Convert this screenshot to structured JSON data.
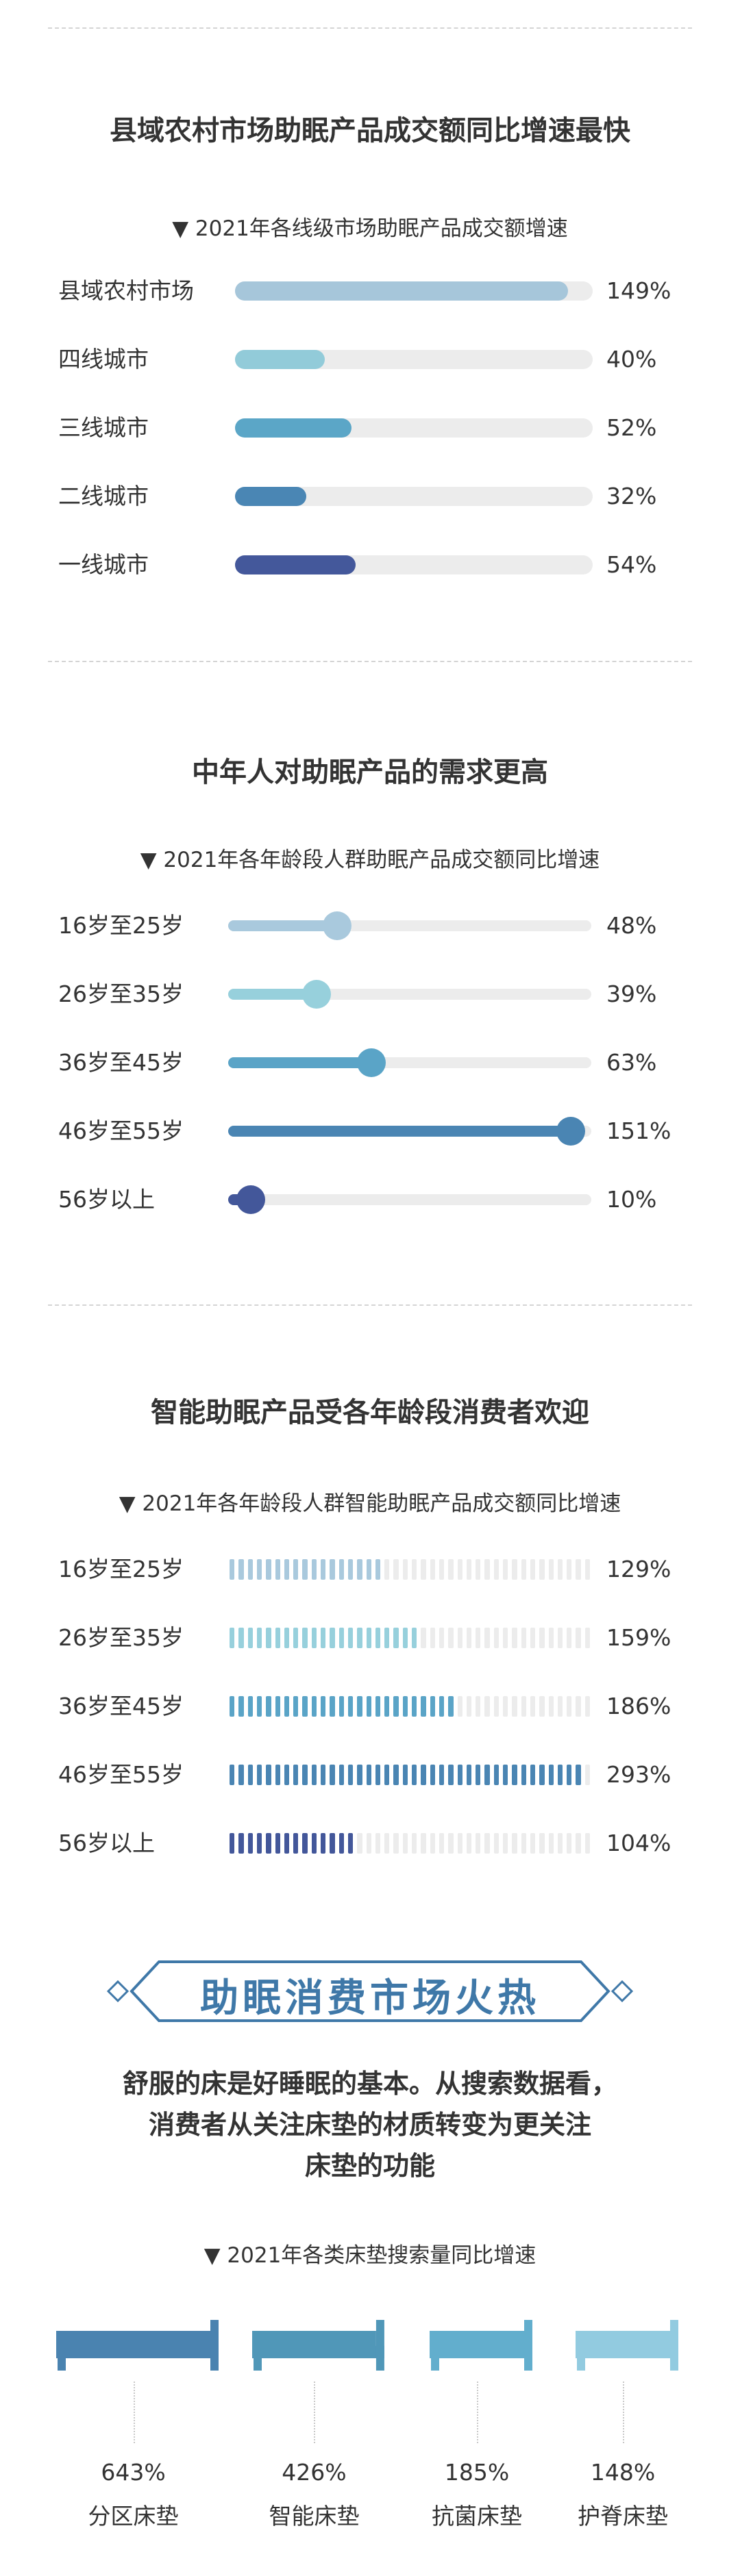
{
  "section1": {
    "title": "县域农村市场助眠产品成交额同比增速最快",
    "chart_data": {
      "type": "bar",
      "title": "▼ 2021年各线级市场助眠产品成交额增速",
      "categories": [
        "县域农村市场",
        "四线城市",
        "三线城市",
        "二线城市",
        "一线城市"
      ],
      "values": [
        149,
        40,
        52,
        32,
        54
      ],
      "value_labels": [
        "149%",
        "40%",
        "52%",
        "32%",
        "54%"
      ],
      "xlim": [
        0,
        160
      ],
      "colors": [
        "#a6c6da",
        "#92cbd9",
        "#5ba6c7",
        "#4a86b4",
        "#44589b"
      ],
      "track_color": "#ececec"
    }
  },
  "section2": {
    "title": "中年人对助眠产品的需求更高",
    "chart_data": {
      "type": "bar",
      "title": "▼ 2021年各年龄段人群助眠产品成交额同比增速",
      "categories": [
        "16岁至25岁",
        "26岁至35岁",
        "36岁至45岁",
        "46岁至55岁",
        "56岁以上"
      ],
      "values": [
        48,
        39,
        63,
        151,
        10
      ],
      "value_labels": [
        "48%",
        "39%",
        "63%",
        "151%",
        "10%"
      ],
      "xlim": [
        0,
        160
      ],
      "colors": [
        "#a9c9dd",
        "#97d0dc",
        "#5aa4c7",
        "#4a85b3",
        "#43579a"
      ],
      "track_color": "#ececec"
    }
  },
  "section3": {
    "title": "智能助眠产品受各年龄段消费者欢迎",
    "chart_data": {
      "type": "bar",
      "title": "▼ 2021年各年龄段人群智能助眠产品成交额同比增速",
      "categories": [
        "16岁至25岁",
        "26岁至35岁",
        "36岁至45岁",
        "46岁至55岁",
        "56岁以上"
      ],
      "values": [
        129,
        159,
        186,
        293,
        104
      ],
      "value_labels": [
        "129%",
        "159%",
        "186%",
        "293%",
        "104%"
      ],
      "xlim": [
        0,
        300
      ],
      "segments": 40,
      "colors": [
        "#a9c9dd",
        "#97d0dc",
        "#5aa4c7",
        "#4a85b3",
        "#43579a"
      ],
      "track_color": "#ececec"
    }
  },
  "section4": {
    "banner": "助眠消费市场火热",
    "description": [
      "舒服的床是好睡眠的基本。从搜索数据看，",
      "消费者从关注床垫的材质转变为更关注",
      "床垫的功能"
    ],
    "chart_data": {
      "type": "bar",
      "title": "▼ 2021年各类床垫搜索量同比增速",
      "categories": [
        "分区床垫",
        "智能床垫",
        "抗菌床垫",
        "护脊床垫"
      ],
      "values": [
        643,
        426,
        185,
        148
      ],
      "value_labels": [
        "643%",
        "426%",
        "185%",
        "148%"
      ],
      "colors": [
        "#4a83b0",
        "#5097b8",
        "#62aecd",
        "#92cbe0"
      ]
    }
  },
  "colors": {
    "accent": "#3f78a8",
    "divider": "#d4d4d4",
    "text": "#333333"
  }
}
